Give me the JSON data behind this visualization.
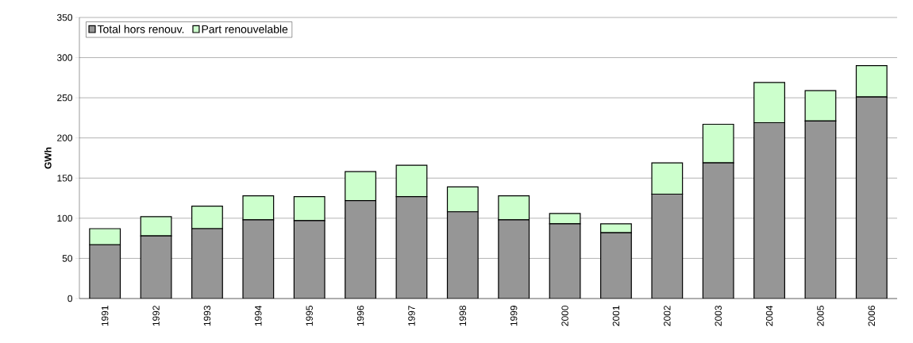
{
  "chart_data": {
    "type": "bar",
    "stacked": true,
    "ylabel": "GWh",
    "categories": [
      "1991",
      "1992",
      "1993",
      "1994",
      "1995",
      "1996",
      "1997",
      "1998",
      "1999",
      "2000",
      "2001",
      "2002",
      "2003",
      "2004",
      "2005",
      "2006"
    ],
    "series": [
      {
        "name": "Total hors renouv.",
        "color": "#969696",
        "values": [
          67,
          78,
          87,
          98,
          97,
          122,
          127,
          108,
          98,
          93,
          82,
          130,
          169,
          219,
          221,
          251
        ]
      },
      {
        "name": "Part renouvelable",
        "color": "#ccffcc",
        "values": [
          20,
          24,
          28,
          30,
          30,
          36,
          39,
          31,
          30,
          13,
          11,
          39,
          48,
          50,
          38,
          39
        ]
      }
    ],
    "ylim": [
      0,
      350
    ],
    "yticks": [
      0,
      50,
      100,
      150,
      200,
      250,
      300,
      350
    ],
    "grid": "y",
    "legend": "top left"
  }
}
